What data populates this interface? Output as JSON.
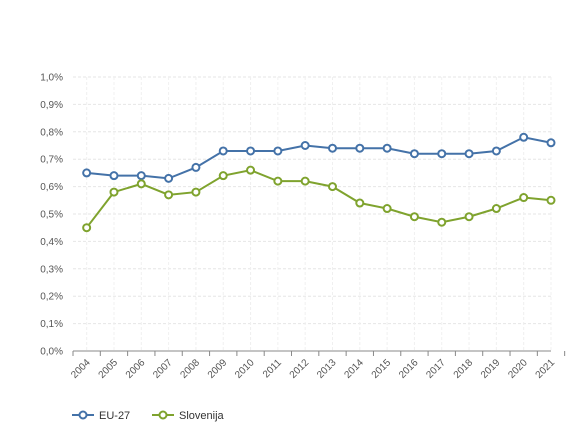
{
  "chart_data": {
    "type": "line",
    "categories": [
      "2004",
      "2005",
      "2006",
      "2007",
      "2008",
      "2009",
      "2010",
      "2011",
      "2012",
      "2013",
      "2014",
      "2015",
      "2016",
      "2017",
      "2018",
      "2019",
      "2020",
      "2021"
    ],
    "ylim": [
      0,
      1.0
    ],
    "yticks": [
      "0,0%",
      "0,1%",
      "0,2%",
      "0,3%",
      "0,4%",
      "0,5%",
      "0,6%",
      "0,7%",
      "0,8%",
      "0,9%",
      "1,0%"
    ],
    "grid": true,
    "legend": "bottom-left",
    "series": [
      {
        "name": "EU-27",
        "color": "#4472a8",
        "values": [
          0.65,
          0.64,
          0.64,
          0.63,
          0.67,
          0.73,
          0.73,
          0.73,
          0.75,
          0.74,
          0.74,
          0.74,
          0.72,
          0.72,
          0.72,
          0.73,
          0.78,
          0.76
        ]
      },
      {
        "name": "Slovenija",
        "color": "#7fa32e",
        "values": [
          0.45,
          0.58,
          0.61,
          0.57,
          0.58,
          0.64,
          0.66,
          0.62,
          0.62,
          0.6,
          0.54,
          0.52,
          0.49,
          0.47,
          0.49,
          0.52,
          0.56,
          0.55
        ]
      }
    ]
  }
}
